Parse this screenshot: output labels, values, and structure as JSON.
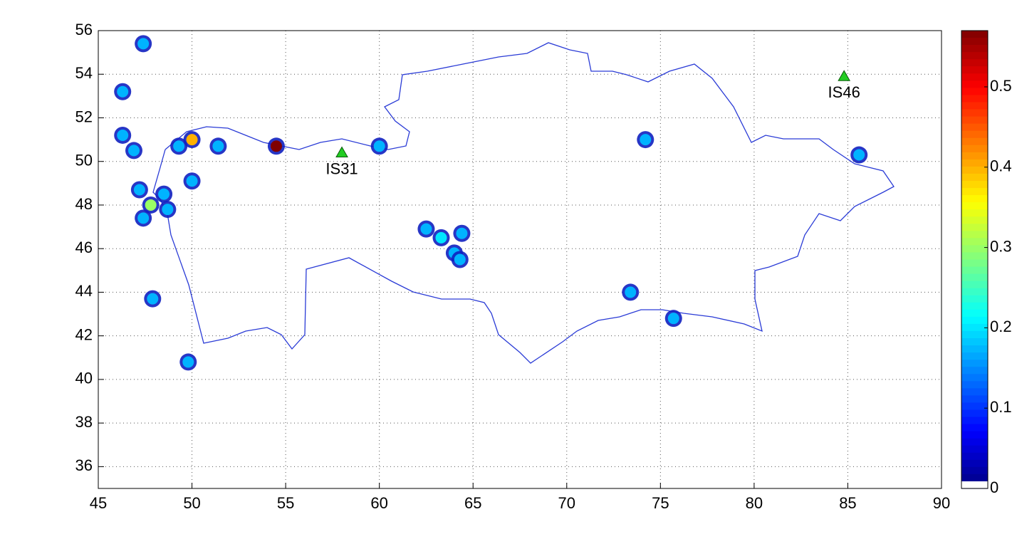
{
  "chart_data": {
    "type": "scatter",
    "x": [
      47.4,
      46.3,
      46.3,
      46.9,
      49.3,
      50.0,
      51.4,
      54.5,
      60.0,
      50.0,
      47.2,
      47.8,
      48.5,
      48.7,
      47.4,
      47.9,
      49.8,
      62.5,
      63.3,
      64.4,
      64.0,
      64.3,
      74.2,
      73.4,
      75.7,
      85.6
    ],
    "y": [
      55.4,
      53.2,
      51.2,
      50.5,
      50.7,
      51.0,
      50.7,
      50.7,
      50.7,
      49.1,
      48.7,
      48.0,
      48.5,
      47.8,
      47.4,
      43.7,
      40.8,
      46.9,
      46.5,
      46.7,
      45.8,
      45.5,
      51.0,
      44.0,
      42.8,
      50.3
    ],
    "values": [
      0.08,
      0.08,
      0.08,
      0.08,
      0.1,
      0.4,
      0.08,
      0.57,
      0.08,
      0.08,
      0.1,
      0.3,
      0.1,
      0.1,
      0.1,
      0.08,
      0.08,
      0.1,
      0.2,
      0.1,
      0.12,
      0.12,
      0.08,
      0.08,
      0.08,
      0.08
    ],
    "stations": [
      {
        "name": "IS31",
        "x": 58.0,
        "y": 50.4
      },
      {
        "name": "IS46",
        "x": 84.8,
        "y": 53.9
      }
    ],
    "station_color": "#22cc22",
    "xlim": [
      45,
      90
    ],
    "xticks": [
      45,
      50,
      55,
      60,
      65,
      70,
      75,
      80,
      85,
      90
    ],
    "ylim": [
      35,
      56
    ],
    "yticks": [
      36,
      38,
      40,
      42,
      44,
      46,
      48,
      50,
      52,
      54,
      56
    ],
    "grid": true,
    "colorbar": {
      "clim": [
        0,
        0.57
      ],
      "ticks": [
        0,
        0.1,
        0.2,
        0.3,
        0.4,
        0.5
      ]
    }
  }
}
